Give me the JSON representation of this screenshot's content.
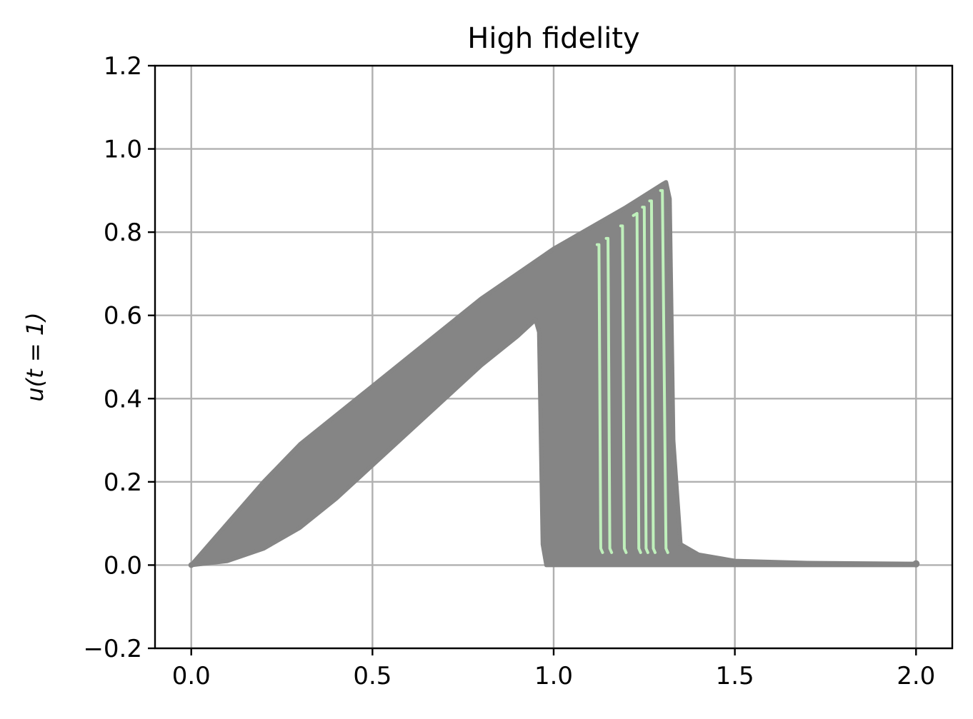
{
  "chart_data": {
    "type": "line",
    "title": "High fidelity",
    "xlabel": "",
    "ylabel": "u(t = 1)",
    "xlim": [
      -0.1,
      2.1
    ],
    "ylim": [
      -0.2,
      1.2
    ],
    "x_ticks": [
      0.0,
      0.5,
      1.0,
      1.5,
      2.0
    ],
    "y_ticks": [
      -0.2,
      0.0,
      0.2,
      0.4,
      0.6,
      0.8,
      1.0,
      1.2
    ],
    "x_tick_labels": [
      "0.0",
      "0.5",
      "1.0",
      "1.5",
      "2.0"
    ],
    "y_tick_labels": [
      "−0.2",
      "0.0",
      "0.2",
      "0.4",
      "0.6",
      "0.8",
      "1.0",
      "1.2"
    ],
    "grid": true,
    "colors": {
      "ensemble": "#858585",
      "highlight": "#bff0bb",
      "grid": "#b0b0b0",
      "axes": "#000000"
    },
    "series": [
      {
        "name": "ensemble-lower-envelope",
        "color": "#858585",
        "x": [
          0.0,
          0.1,
          0.2,
          0.3,
          0.4,
          0.5,
          0.6,
          0.7,
          0.8,
          0.9,
          0.95,
          0.96,
          0.97,
          0.98,
          1.0,
          1.5,
          2.0
        ],
        "y": [
          0.0,
          0.01,
          0.04,
          0.09,
          0.16,
          0.24,
          0.32,
          0.4,
          0.48,
          0.55,
          0.59,
          0.56,
          0.05,
          0.0,
          0.0,
          0.0,
          0.0
        ]
      },
      {
        "name": "ensemble-upper-envelope",
        "color": "#858585",
        "x": [
          0.0,
          0.1,
          0.2,
          0.3,
          0.4,
          0.6,
          0.8,
          1.0,
          1.2,
          1.3,
          1.31,
          1.32,
          1.33,
          1.35,
          1.4,
          1.5,
          1.7,
          2.0
        ],
        "y": [
          0.0,
          0.1,
          0.2,
          0.29,
          0.36,
          0.5,
          0.64,
          0.76,
          0.86,
          0.915,
          0.92,
          0.88,
          0.3,
          0.05,
          0.025,
          0.01,
          0.005,
          0.003
        ]
      },
      {
        "name": "highlight-1",
        "color": "#bff0bb",
        "x": [
          1.12,
          1.125,
          1.13,
          1.135
        ],
        "y": [
          0.77,
          0.77,
          0.04,
          0.03
        ]
      },
      {
        "name": "highlight-2",
        "color": "#bff0bb",
        "x": [
          1.145,
          1.15,
          1.155,
          1.16
        ],
        "y": [
          0.785,
          0.785,
          0.04,
          0.03
        ]
      },
      {
        "name": "highlight-3",
        "color": "#bff0bb",
        "x": [
          1.185,
          1.19,
          1.195,
          1.2
        ],
        "y": [
          0.815,
          0.815,
          0.04,
          0.03
        ]
      },
      {
        "name": "highlight-4",
        "color": "#bff0bb",
        "x": [
          1.22,
          1.23,
          1.235,
          1.24
        ],
        "y": [
          0.84,
          0.845,
          0.04,
          0.03
        ]
      },
      {
        "name": "highlight-5",
        "color": "#bff0bb",
        "x": [
          1.245,
          1.25,
          1.255,
          1.26
        ],
        "y": [
          0.86,
          0.86,
          0.04,
          0.03
        ]
      },
      {
        "name": "highlight-6",
        "color": "#bff0bb",
        "x": [
          1.265,
          1.27,
          1.275,
          1.28
        ],
        "y": [
          0.875,
          0.875,
          0.04,
          0.03
        ]
      },
      {
        "name": "highlight-7",
        "color": "#bff0bb",
        "x": [
          1.295,
          1.3,
          1.31,
          1.315
        ],
        "y": [
          0.9,
          0.9,
          0.04,
          0.03
        ]
      }
    ]
  }
}
